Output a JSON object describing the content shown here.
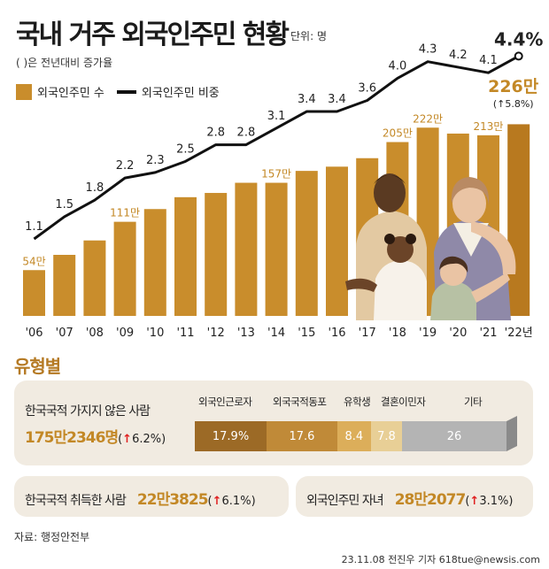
{
  "title": "국내 거주 외국인주민 현황",
  "unit": "단위: 명",
  "subtitle": "( )은 전년대비 증가율",
  "legend": {
    "bar": "외국인주민 수",
    "line": "외국인주민 비중"
  },
  "colors": {
    "bar": "#c98d2c",
    "bar_last": "#b8791f",
    "line": "#111111",
    "accent": "#c38826",
    "up": "#e02020"
  },
  "chart_data": {
    "type": "bar",
    "categories": [
      "'06",
      "'07",
      "'08",
      "'09",
      "'10",
      "'11",
      "'12",
      "'13",
      "'14",
      "'15",
      "'16",
      "'17",
      "'18",
      "'19",
      "'20",
      "'21",
      "'22년"
    ],
    "series": [
      {
        "name": "외국인주민 수",
        "values": [
          54,
          72,
          89,
          111,
          126,
          140,
          145,
          157,
          157,
          171,
          176,
          186,
          205,
          222,
          215,
          213,
          226
        ],
        "unit": "만명"
      },
      {
        "name": "외국인주민 비중",
        "values": [
          1.1,
          1.5,
          1.8,
          2.2,
          2.3,
          2.5,
          2.8,
          2.8,
          3.1,
          3.4,
          3.4,
          3.6,
          4.0,
          4.3,
          4.2,
          4.1,
          4.4
        ],
        "unit": "%",
        "type": "line"
      }
    ],
    "bar_labels": {
      "0": "54만",
      "3": "111만",
      "8": "157만",
      "12": "205만",
      "13": "222만",
      "15": "213만",
      "16": "226만"
    },
    "line_labels": [
      "1.1",
      "1.5",
      "1.8",
      "2.2",
      "2.3",
      "2.5",
      "2.8",
      "2.8",
      "3.1",
      "3.4",
      "3.4",
      "3.6",
      "4.0",
      "4.3",
      "4.2",
      "4.1",
      "4.4%"
    ],
    "last_growth": "(↑5.8%)",
    "ylim_bar": [
      0,
      240
    ],
    "ylim_line": [
      0,
      4.6
    ],
    "grid": false
  },
  "types": {
    "heading": "유형별",
    "non_citizen": {
      "label": "한국국적 가지지 않은 사람",
      "value": "175만2346명",
      "change": "6.2%",
      "segments": [
        {
          "label": "외국인근로자",
          "value": 17.9,
          "text": "17.9%",
          "color": "#9c6a26"
        },
        {
          "label": "외국국적동포",
          "value": 17.6,
          "text": "17.6",
          "color": "#c08a38"
        },
        {
          "label": "유학생",
          "value": 8.4,
          "text": "8.4",
          "color": "#dcae5a"
        },
        {
          "label": "결혼이민자",
          "value": 7.8,
          "text": "7.8",
          "color": "#e8cf96"
        },
        {
          "label": "기타",
          "value": 26,
          "text": "26",
          "color": "#b4b4b4"
        }
      ]
    },
    "acquired": {
      "label": "한국국적 취득한 사람",
      "value": "22만3825",
      "change": "6.1%"
    },
    "children": {
      "label": "외국인주민 자녀",
      "value": "28만2077",
      "change": "3.1%"
    }
  },
  "source": "자료: 행정안전부",
  "credit": "23.11.08 전진우 기자 618tue@newsis.com"
}
